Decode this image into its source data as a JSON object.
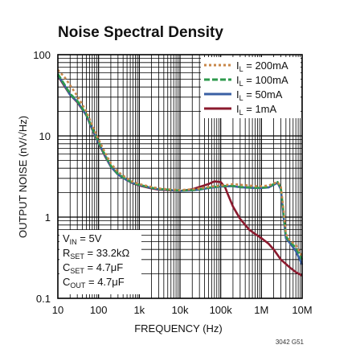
{
  "chart_data": {
    "type": "line",
    "title": "Noise Spectral Density",
    "xlabel": "FREQUENCY (Hz)",
    "ylabel": "OUTPUT NOISE (nV/√Hz)",
    "x_scale": "log",
    "y_scale": "log",
    "xlim": [
      10,
      10000000
    ],
    "ylim": [
      0.1,
      100
    ],
    "x_ticks": [
      10,
      100,
      1000,
      10000,
      100000,
      1000000,
      10000000
    ],
    "x_tick_labels": [
      "10",
      "100",
      "1k",
      "10k",
      "100k",
      "1M",
      "10M"
    ],
    "y_ticks": [
      0.1,
      1,
      10,
      100
    ],
    "y_tick_labels": [
      "0.1",
      "1",
      "10",
      "100"
    ],
    "grid": true,
    "legend_position": "top-right",
    "series": [
      {
        "name": "IL = 200mA",
        "name_parts": [
          "I",
          "L",
          " = 200mA"
        ],
        "color": "#c8874a",
        "style": "dotted",
        "x": [
          10,
          15,
          20,
          30,
          50,
          70,
          100,
          150,
          200,
          300,
          500,
          700,
          1000,
          2000,
          3000,
          5000,
          10000,
          20000,
          30000,
          50000,
          70000,
          100000,
          150000,
          200000,
          300000,
          500000,
          700000,
          1000000,
          1500000,
          2000000,
          2500000,
          3000000,
          3500000,
          4000000,
          5000000,
          7000000,
          10000000
        ],
        "values": [
          65,
          52,
          42,
          31,
          20,
          13.5,
          9,
          6,
          4.6,
          3.6,
          3.0,
          2.7,
          2.55,
          2.35,
          2.25,
          2.2,
          2.15,
          2.2,
          2.25,
          2.35,
          2.4,
          2.45,
          2.5,
          2.55,
          2.5,
          2.45,
          2.4,
          2.4,
          2.45,
          2.6,
          2.7,
          2.4,
          1.2,
          0.62,
          0.52,
          0.45,
          0.33
        ]
      },
      {
        "name": "IL = 100mA",
        "name_parts": [
          "I",
          "L",
          " = 100mA"
        ],
        "color": "#2e9a4c",
        "style": "dashed",
        "x": [
          10,
          15,
          20,
          30,
          50,
          70,
          100,
          150,
          200,
          300,
          500,
          700,
          1000,
          2000,
          3000,
          5000,
          10000,
          20000,
          30000,
          50000,
          70000,
          100000,
          150000,
          200000,
          300000,
          500000,
          700000,
          1000000,
          1500000,
          2000000,
          2500000,
          3000000,
          3500000,
          4000000,
          5000000,
          7000000,
          10000000
        ],
        "values": [
          58,
          42,
          33,
          27,
          18.5,
          12.5,
          8.4,
          5.6,
          4.3,
          3.4,
          2.9,
          2.65,
          2.5,
          2.3,
          2.22,
          2.18,
          2.12,
          2.15,
          2.2,
          2.3,
          2.35,
          2.4,
          2.42,
          2.42,
          2.35,
          2.32,
          2.3,
          2.3,
          2.35,
          2.55,
          2.7,
          2.3,
          1.1,
          0.58,
          0.5,
          0.42,
          0.3
        ]
      },
      {
        "name": "IL = 50mA",
        "name_parts": [
          "I",
          "L",
          " = 50mA"
        ],
        "color": "#3a5fa3",
        "style": "solid",
        "x": [
          10,
          15,
          20,
          30,
          50,
          70,
          100,
          150,
          200,
          300,
          500,
          700,
          1000,
          2000,
          3000,
          5000,
          10000,
          20000,
          30000,
          50000,
          70000,
          100000,
          150000,
          200000,
          300000,
          500000,
          700000,
          1000000,
          1500000,
          2000000,
          2500000,
          3000000,
          3500000,
          4000000,
          5000000,
          7000000,
          10000000
        ],
        "values": [
          56,
          41,
          32,
          26.5,
          18,
          12.2,
          8.2,
          5.5,
          4.2,
          3.35,
          2.85,
          2.62,
          2.48,
          2.28,
          2.2,
          2.17,
          2.1,
          2.13,
          2.18,
          2.28,
          2.33,
          2.38,
          2.4,
          2.4,
          2.33,
          2.3,
          2.28,
          2.28,
          2.32,
          2.5,
          2.65,
          2.2,
          1.0,
          0.55,
          0.48,
          0.38,
          0.26
        ]
      },
      {
        "name": "IL = 1mA",
        "name_parts": [
          "I",
          "L",
          " = 1mA"
        ],
        "color": "#8b1a2e",
        "style": "solid",
        "x": [
          10,
          15,
          20,
          30,
          50,
          70,
          100,
          150,
          200,
          300,
          500,
          700,
          1000,
          2000,
          3000,
          5000,
          10000,
          20000,
          30000,
          50000,
          70000,
          100000,
          130000,
          150000,
          200000,
          300000,
          500000,
          700000,
          1000000,
          1500000,
          2000000,
          3000000,
          5000000,
          7000000,
          10000000
        ],
        "values": [
          55,
          40,
          32,
          26,
          18,
          12,
          8.1,
          5.4,
          4.2,
          3.35,
          2.85,
          2.6,
          2.45,
          2.25,
          2.18,
          2.15,
          2.1,
          2.2,
          2.35,
          2.55,
          2.75,
          2.7,
          2.3,
          1.9,
          1.35,
          0.95,
          0.7,
          0.62,
          0.55,
          0.47,
          0.4,
          0.3,
          0.24,
          0.21,
          0.19
        ]
      }
    ],
    "annotations": [
      {
        "key": "vin",
        "parts": [
          "V",
          "IN",
          " = 5V"
        ]
      },
      {
        "key": "rset",
        "parts": [
          "R",
          "SET",
          " = 33.2kΩ"
        ]
      },
      {
        "key": "cset",
        "parts": [
          "C",
          "SET",
          " = 4.7μF"
        ]
      },
      {
        "key": "cout",
        "parts": [
          "C",
          "OUT",
          " = 4.7μF"
        ]
      }
    ],
    "figure_code": "3042 G51"
  }
}
